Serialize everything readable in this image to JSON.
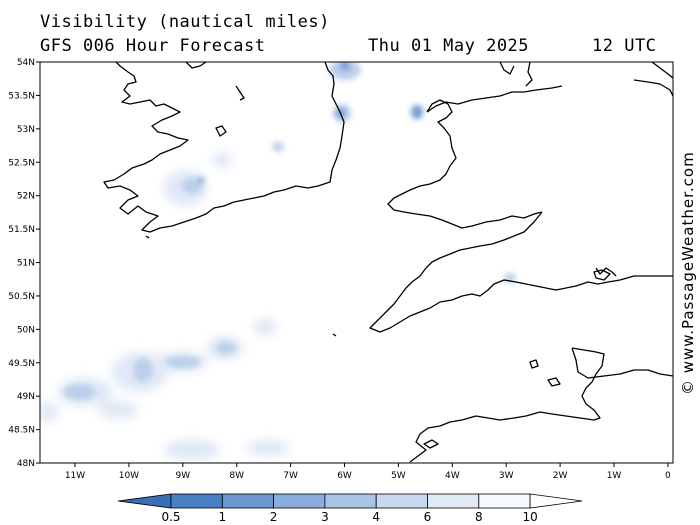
{
  "header": {
    "title": "Visibility (nautical miles)",
    "subtitle": "GFS 006 Hour Forecast",
    "date": "Thu 01 May 2025",
    "time": "12 UTC"
  },
  "credit": "© www.PassageWeather.com",
  "map": {
    "lat_labels": [
      "54N",
      "53.5N",
      "53N",
      "52.5N",
      "52N",
      "51.5N",
      "51N",
      "50.5N",
      "50N",
      "49.5N",
      "49N",
      "48.5N",
      "48N"
    ],
    "lon_labels": [
      "11W",
      "10W",
      "9W",
      "8W",
      "7W",
      "6W",
      "5W",
      "4W",
      "3W",
      "2W",
      "1W",
      "0"
    ],
    "land_color": "#ffffff",
    "sea_color": "#ffffff",
    "coastline_color": "#000000"
  },
  "legend": {
    "labels": [
      "0.5",
      "1",
      "2",
      "3",
      "4",
      "6",
      "8",
      "10"
    ],
    "colors": [
      "#3a6fb8",
      "#4a7fc4",
      "#6b97d0",
      "#8caedc",
      "#abc4e6",
      "#c8d8ef",
      "#e1eaf6",
      "#f5f8fc",
      "#ffffff"
    ]
  }
}
